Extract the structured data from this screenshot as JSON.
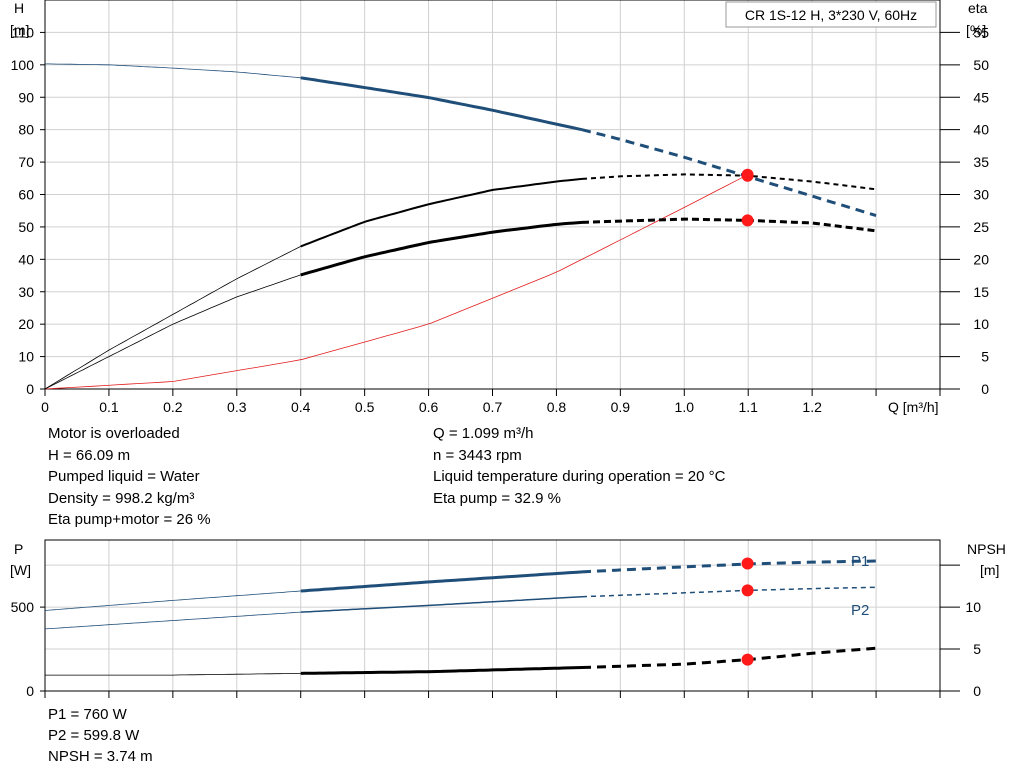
{
  "chart_data": [
    {
      "type": "line",
      "title": "CR 1S-12 H, 3*230 V, 60Hz",
      "xlabel": "Q [m³/h]",
      "ylabel_left": [
        "H",
        "[m]"
      ],
      "ylabel_right": [
        "eta",
        "[%]"
      ],
      "xlim": [
        0,
        1.4
      ],
      "ylim_left": [
        0,
        120
      ],
      "ylim_right": [
        0,
        60
      ],
      "x_ticks": [
        "0",
        "0.1",
        "0.2",
        "0.3",
        "0.4",
        "0.5",
        "0.6",
        "0.7",
        "0.8",
        "0.9",
        "1.0",
        "1.1",
        "1.2"
      ],
      "y_ticks_left": [
        "0",
        "10",
        "20",
        "30",
        "40",
        "50",
        "60",
        "70",
        "80",
        "90",
        "100",
        "110"
      ],
      "y_ticks_right": [
        "0",
        "5",
        "10",
        "15",
        "20",
        "25",
        "30",
        "35",
        "40",
        "45",
        "50",
        "55"
      ],
      "grid": true,
      "series": [
        {
          "axis": "left",
          "color": "#1f4e79",
          "x": [
            0,
            0.1,
            0.2,
            0.3,
            0.4,
            0.5,
            0.6,
            0.7,
            0.8,
            0.84,
            0.9,
            1.0,
            1.1,
            1.2,
            1.3
          ],
          "y": [
            100.3,
            100.0,
            99.0,
            97.8,
            96.0,
            93.0,
            89.9,
            86.0,
            81.7,
            80.0,
            77.0,
            71.5,
            65.5,
            59.5,
            53.5
          ]
        },
        {
          "axis": "right",
          "color": "#000000",
          "x": [
            0,
            0.1,
            0.2,
            0.3,
            0.4,
            0.5,
            0.6,
            0.7,
            0.8,
            0.84,
            0.9,
            1.0,
            1.1,
            1.2,
            1.3
          ],
          "y": [
            0,
            6.0,
            11.5,
            17.0,
            22.0,
            25.8,
            28.5,
            30.7,
            32.0,
            32.4,
            32.8,
            33.1,
            32.9,
            32.0,
            30.8
          ]
        },
        {
          "axis": "right",
          "color": "#000000",
          "x": [
            0,
            0.1,
            0.2,
            0.3,
            0.4,
            0.5,
            0.6,
            0.7,
            0.8,
            0.84,
            0.9,
            1.0,
            1.1,
            1.2,
            1.3
          ],
          "y": [
            0,
            5.0,
            10.0,
            14.2,
            17.6,
            20.4,
            22.6,
            24.2,
            25.4,
            25.7,
            25.9,
            26.2,
            26.0,
            25.6,
            24.4
          ]
        },
        {
          "axis": "left",
          "color": "#e21c1c",
          "x": [
            0,
            0.2,
            0.4,
            0.6,
            0.8,
            1.0,
            1.099
          ],
          "y": [
            0,
            2.3,
            9.0,
            20.0,
            36.0,
            56.0,
            66.09
          ]
        }
      ],
      "operating_point": {
        "Q": 1.099,
        "H": 66.09,
        "eta_pump": 32.9,
        "eta_pump_motor": 26
      }
    },
    {
      "type": "line",
      "ylabel_left": [
        "P",
        "[W]"
      ],
      "ylabel_right": [
        "NPSH",
        "[m]"
      ],
      "xlim": [
        0,
        1.4
      ],
      "ylim_left": [
        0,
        900
      ],
      "ylim_right": [
        0,
        18
      ],
      "y_ticks_left": [
        "0",
        "500"
      ],
      "y_ticks_right": [
        "0",
        "5",
        "10"
      ],
      "grid": true,
      "series": [
        {
          "name": "P1",
          "axis": "left",
          "color": "#1f4e79",
          "x": [
            0,
            0.2,
            0.4,
            0.6,
            0.84,
            1.0,
            1.1,
            1.2,
            1.3
          ],
          "y": [
            480,
            540,
            596,
            650,
            710,
            740,
            757,
            768,
            775
          ]
        },
        {
          "name": "P2",
          "axis": "left",
          "color": "#1f4e79",
          "x": [
            0,
            0.2,
            0.4,
            0.6,
            0.84,
            1.0,
            1.1,
            1.2,
            1.3
          ],
          "y": [
            370,
            420,
            470,
            510,
            562,
            585,
            600,
            610,
            618
          ]
        },
        {
          "axis": "right",
          "color": "#000000",
          "x": [
            0,
            0.2,
            0.4,
            0.6,
            0.84,
            1.0,
            1.1,
            1.2,
            1.3
          ],
          "y": [
            1.9,
            1.9,
            2.1,
            2.3,
            2.8,
            3.2,
            3.74,
            4.5,
            5.1
          ]
        }
      ]
    }
  ],
  "info_upper_left": [
    "Motor is overloaded",
    "H = 66.09 m",
    "Pumped liquid = Water",
    "Density = 998.2 kg/m³",
    "Eta pump+motor = 26 %"
  ],
  "info_upper_right": [
    "Q = 1.099 m³/h",
    "n = 3443 rpm",
    "Liquid temperature during operation = 20 °C",
    "Eta pump = 32.9 %"
  ],
  "info_lower": [
    "P1 = 760 W",
    "P2 = 599.8 W",
    "NPSH = 3.74 m"
  ]
}
